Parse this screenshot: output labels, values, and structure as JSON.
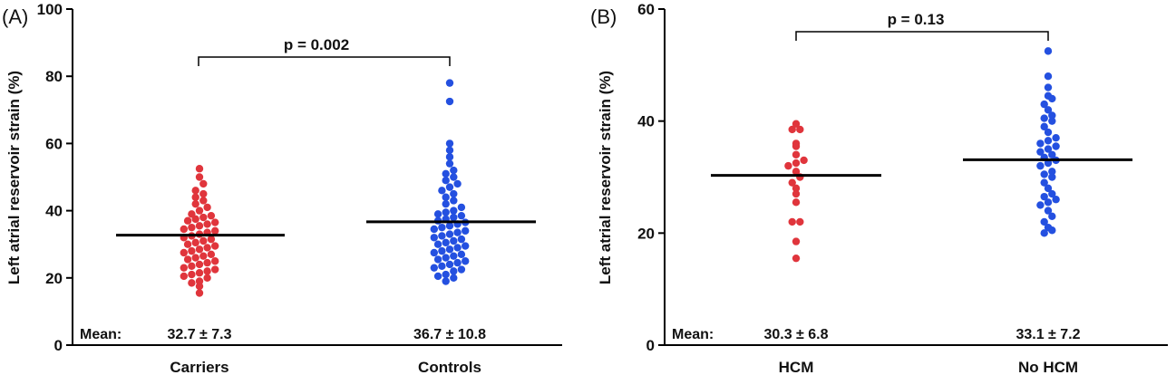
{
  "chart_data": [
    {
      "panel": "(A)",
      "type": "scatter",
      "ylabel": "Left atrial reservoir strain (%)",
      "ylim": [
        0,
        100
      ],
      "yticks": [
        "0",
        "20",
        "40",
        "60",
        "80",
        "100"
      ],
      "categories": [
        "Carriers",
        "Controls"
      ],
      "mean_row_label": "Mean:",
      "mean_labels": [
        "32.7 ± 7.3",
        "36.7 ± 10.8"
      ],
      "means": [
        32.7,
        36.7
      ],
      "pvalue": "p = 0.002",
      "series": [
        {
          "color": "#e0353c",
          "values": [
            15.5,
            17.5,
            18.5,
            19,
            20,
            20.5,
            21,
            21.5,
            22,
            22.5,
            23,
            23.5,
            24,
            24.5,
            25,
            25.5,
            26,
            26.5,
            27,
            27.5,
            28,
            28.5,
            29,
            29.5,
            30,
            30.5,
            31,
            31.5,
            32,
            32.5,
            33,
            33.5,
            34,
            34.5,
            35,
            35.5,
            36,
            36.5,
            37,
            37.5,
            38,
            38.5,
            39,
            40,
            41,
            42,
            43,
            44,
            45,
            46,
            48,
            50,
            52.5
          ]
        },
        {
          "color": "#2450e0",
          "values": [
            19,
            20,
            20.5,
            21,
            22,
            22.5,
            23,
            23.5,
            24,
            24.5,
            25,
            25.5,
            26,
            26.5,
            27,
            27.5,
            28,
            28.5,
            29,
            29.5,
            30,
            30.5,
            31,
            31.5,
            32,
            32.5,
            33,
            33.5,
            34,
            34.5,
            35,
            35.5,
            36,
            36.5,
            37,
            37.5,
            38,
            38.5,
            39,
            39.5,
            40,
            41,
            42,
            43,
            44,
            45,
            46,
            47,
            48,
            49,
            50,
            51,
            52,
            54,
            56,
            58,
            60,
            72.5,
            78
          ]
        }
      ]
    },
    {
      "panel": "(B)",
      "type": "scatter",
      "ylabel": "Left atrial reservoir strain (%)",
      "ylim": [
        0,
        60
      ],
      "yticks": [
        "0",
        "20",
        "40",
        "60"
      ],
      "categories": [
        "HCM",
        "No HCM"
      ],
      "mean_row_label": "Mean:",
      "mean_labels": [
        "30.3 ± 6.8",
        "33.1 ± 7.2"
      ],
      "means": [
        30.3,
        33.1
      ],
      "pvalue": "p = 0.13",
      "series": [
        {
          "color": "#e0353c",
          "values": [
            15.5,
            18.5,
            22,
            22,
            25.5,
            27,
            28,
            29,
            30,
            31,
            32,
            32.5,
            33,
            34,
            35.5,
            36,
            38.5,
            38.5,
            39.5
          ]
        },
        {
          "color": "#2450e0",
          "values": [
            20,
            20.5,
            21,
            22,
            23,
            24,
            25,
            25.5,
            26,
            26.5,
            27,
            28,
            29,
            30,
            30.5,
            31,
            32,
            32.5,
            33,
            33.5,
            34,
            34.5,
            35,
            35.5,
            36,
            36.5,
            37,
            38,
            39,
            40,
            40.5,
            41,
            42,
            43,
            44,
            44.5,
            46,
            48,
            52.5
          ]
        }
      ]
    }
  ]
}
